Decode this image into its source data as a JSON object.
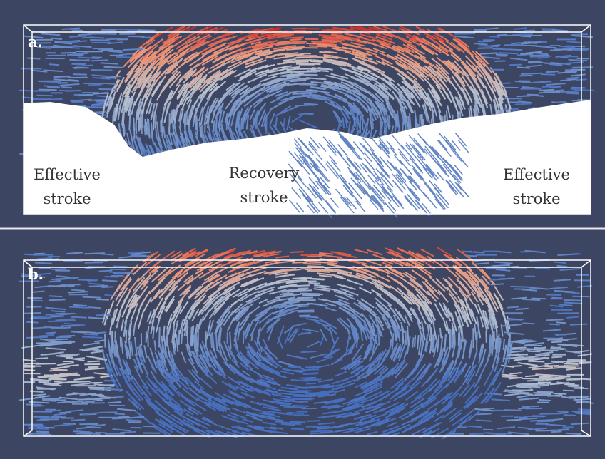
{
  "panels": [
    {
      "label": "a.",
      "annotations": [
        "Effective stroke",
        "Recovery stroke",
        "Effective stroke"
      ]
    },
    {
      "label": "b."
    }
  ]
}
